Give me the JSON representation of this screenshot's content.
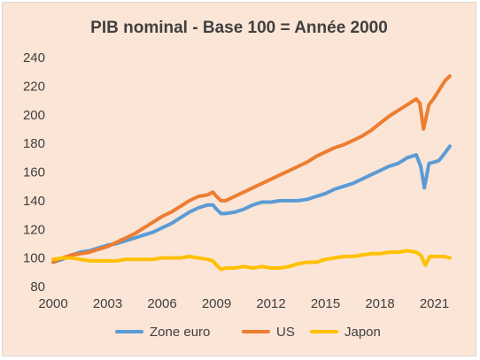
{
  "chart_data": {
    "type": "line",
    "title": "PIB nominal - Base 100 = Année 2000",
    "xlabel": "",
    "ylabel": "",
    "xlim": [
      2000,
      2022
    ],
    "ylim": [
      80,
      240
    ],
    "yticks": [
      80,
      100,
      120,
      140,
      160,
      180,
      200,
      220,
      240
    ],
    "xticks": [
      "2000",
      "2003",
      "2006",
      "2009",
      "2012",
      "2015",
      "2018",
      "2021"
    ],
    "grid": false,
    "legend": "bottom",
    "series": [
      {
        "name": "Zone euro",
        "color": "#5b9bd5",
        "points": [
          [
            2000,
            97
          ],
          [
            2000.5,
            99
          ],
          [
            2001,
            102
          ],
          [
            2001.5,
            104
          ],
          [
            2002,
            105
          ],
          [
            2002.5,
            107
          ],
          [
            2003,
            109
          ],
          [
            2003.5,
            110
          ],
          [
            2004,
            112
          ],
          [
            2004.5,
            114
          ],
          [
            2005,
            116
          ],
          [
            2005.5,
            118
          ],
          [
            2006,
            121
          ],
          [
            2006.5,
            124
          ],
          [
            2007,
            128
          ],
          [
            2007.5,
            132
          ],
          [
            2008,
            135
          ],
          [
            2008.5,
            137
          ],
          [
            2008.8,
            137
          ],
          [
            2009,
            134
          ],
          [
            2009.25,
            131
          ],
          [
            2009.5,
            131
          ],
          [
            2010,
            132
          ],
          [
            2010.5,
            134
          ],
          [
            2011,
            137
          ],
          [
            2011.5,
            139
          ],
          [
            2012,
            139
          ],
          [
            2012.5,
            140
          ],
          [
            2013,
            140
          ],
          [
            2013.5,
            140
          ],
          [
            2014,
            141
          ],
          [
            2014.5,
            143
          ],
          [
            2015,
            145
          ],
          [
            2015.5,
            148
          ],
          [
            2016,
            150
          ],
          [
            2016.5,
            152
          ],
          [
            2017,
            155
          ],
          [
            2017.5,
            158
          ],
          [
            2018,
            161
          ],
          [
            2018.5,
            164
          ],
          [
            2019,
            166
          ],
          [
            2019.5,
            170
          ],
          [
            2020,
            172
          ],
          [
            2020.25,
            164
          ],
          [
            2020.45,
            149
          ],
          [
            2020.7,
            166
          ],
          [
            2021,
            167
          ],
          [
            2021.25,
            168
          ],
          [
            2021.5,
            172
          ],
          [
            2021.85,
            178
          ]
        ]
      },
      {
        "name": "US",
        "color": "#ed7d31",
        "points": [
          [
            2000,
            97
          ],
          [
            2000.5,
            100
          ],
          [
            2001,
            102
          ],
          [
            2001.5,
            103
          ],
          [
            2002,
            104
          ],
          [
            2002.5,
            106
          ],
          [
            2003,
            108
          ],
          [
            2003.5,
            111
          ],
          [
            2004,
            114
          ],
          [
            2004.5,
            117
          ],
          [
            2005,
            121
          ],
          [
            2005.5,
            125
          ],
          [
            2006,
            129
          ],
          [
            2006.5,
            132
          ],
          [
            2007,
            136
          ],
          [
            2007.5,
            140
          ],
          [
            2008,
            143
          ],
          [
            2008.5,
            144
          ],
          [
            2008.8,
            146
          ],
          [
            2009,
            143
          ],
          [
            2009.25,
            140
          ],
          [
            2009.5,
            140
          ],
          [
            2010,
            143
          ],
          [
            2010.5,
            146
          ],
          [
            2011,
            149
          ],
          [
            2011.5,
            152
          ],
          [
            2012,
            155
          ],
          [
            2012.5,
            158
          ],
          [
            2013,
            161
          ],
          [
            2013.5,
            164
          ],
          [
            2014,
            167
          ],
          [
            2014.5,
            171
          ],
          [
            2015,
            174
          ],
          [
            2015.5,
            177
          ],
          [
            2016,
            179
          ],
          [
            2016.5,
            182
          ],
          [
            2017,
            185
          ],
          [
            2017.5,
            189
          ],
          [
            2018,
            194
          ],
          [
            2018.5,
            199
          ],
          [
            2019,
            203
          ],
          [
            2019.5,
            207
          ],
          [
            2020,
            211
          ],
          [
            2020.2,
            208
          ],
          [
            2020.4,
            190
          ],
          [
            2020.7,
            207
          ],
          [
            2021,
            212
          ],
          [
            2021.3,
            218
          ],
          [
            2021.6,
            224
          ],
          [
            2021.85,
            227
          ]
        ]
      },
      {
        "name": "Japon",
        "color": "#ffc000",
        "points": [
          [
            2000,
            99
          ],
          [
            2000.5,
            100
          ],
          [
            2001,
            100
          ],
          [
            2001.5,
            99
          ],
          [
            2002,
            98
          ],
          [
            2002.5,
            98
          ],
          [
            2003,
            98
          ],
          [
            2003.5,
            98
          ],
          [
            2004,
            99
          ],
          [
            2004.5,
            99
          ],
          [
            2005,
            99
          ],
          [
            2005.5,
            99
          ],
          [
            2006,
            100
          ],
          [
            2006.5,
            100
          ],
          [
            2007,
            100
          ],
          [
            2007.5,
            101
          ],
          [
            2008,
            100
          ],
          [
            2008.5,
            99
          ],
          [
            2008.8,
            98
          ],
          [
            2009,
            95
          ],
          [
            2009.25,
            92
          ],
          [
            2009.5,
            93
          ],
          [
            2010,
            93
          ],
          [
            2010.5,
            94
          ],
          [
            2011,
            93
          ],
          [
            2011.5,
            94
          ],
          [
            2012,
            93
          ],
          [
            2012.5,
            93
          ],
          [
            2013,
            94
          ],
          [
            2013.5,
            96
          ],
          [
            2014,
            97
          ],
          [
            2014.5,
            97
          ],
          [
            2015,
            99
          ],
          [
            2015.5,
            100
          ],
          [
            2016,
            101
          ],
          [
            2016.5,
            101
          ],
          [
            2017,
            102
          ],
          [
            2017.5,
            103
          ],
          [
            2018,
            103
          ],
          [
            2018.5,
            104
          ],
          [
            2019,
            104
          ],
          [
            2019.5,
            105
          ],
          [
            2020,
            104
          ],
          [
            2020.25,
            102
          ],
          [
            2020.5,
            95
          ],
          [
            2020.75,
            101
          ],
          [
            2021,
            101
          ],
          [
            2021.25,
            101
          ],
          [
            2021.5,
            101
          ],
          [
            2021.85,
            100
          ]
        ]
      }
    ]
  }
}
